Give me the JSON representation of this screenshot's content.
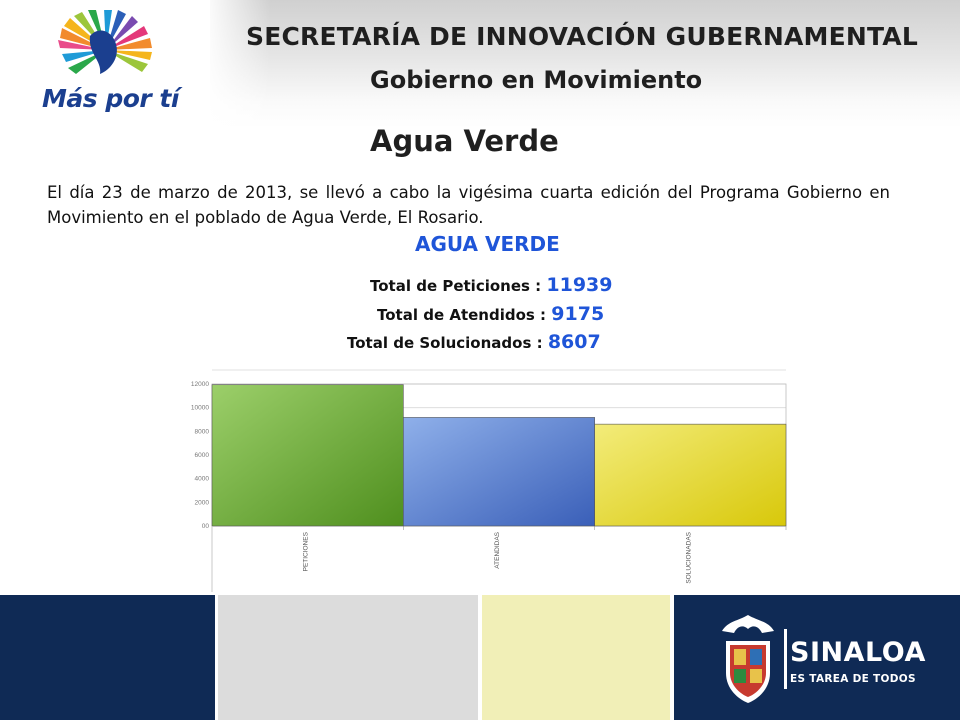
{
  "header": {
    "logo_text": "Más por tí",
    "secretariat": "SECRETARÍA DE INNOVACIÓN GUBERNAMENTAL",
    "program": "Gobierno en Movimiento"
  },
  "page": {
    "title": "Agua Verde",
    "body": "El día 23 de marzo de 2013, se llevó a cabo la vigésima cuarta edición del Programa Gobierno en Movimiento en el poblado de Agua Verde, El Rosario."
  },
  "stats": {
    "heading": "AGUA VERDE",
    "peticiones_label": "Total de Peticiones :",
    "peticiones_value": "11939",
    "atendidos_label": "Total de Atendidos :",
    "atendidos_value": "9175",
    "solucionados_label": "Total de Solucionados :",
    "solucionados_value": "8607"
  },
  "chart_data": {
    "type": "bar",
    "categories": [
      "PETICIONES",
      "ATENDIDAS",
      "SOLUCIONADAS"
    ],
    "values": [
      11939,
      9175,
      8607
    ],
    "ylim": [
      0,
      12000
    ],
    "yticks": [
      "00",
      "2000",
      "4000",
      "6000",
      "8000",
      "10000",
      "12000"
    ],
    "grid": true,
    "colors": [
      "#6aa83a",
      "#4a74c8",
      "#e0d21a"
    ]
  },
  "footer": {
    "brand": "SINALOA",
    "tagline": "ES TAREA DE TODOS",
    "colors": [
      "#0f2a55",
      "#dcdcdc",
      "#f1efb7",
      "#0f2a55"
    ]
  }
}
